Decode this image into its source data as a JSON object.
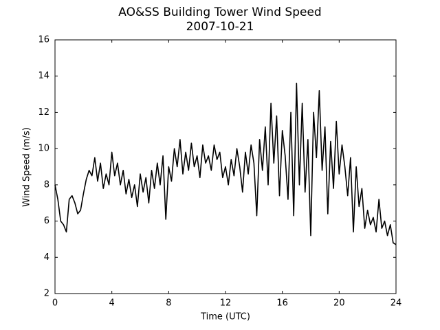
{
  "chart_data": {
    "type": "line",
    "title": "AO&SS Building Tower Wind Speed",
    "subtitle": "2007-10-21",
    "x_label": "Time (UTC)",
    "y_label": "Wind Speed (m/s)",
    "xlim": [
      0,
      24
    ],
    "xticks": [
      0,
      4,
      8,
      12,
      16,
      20,
      24
    ],
    "ylim": [
      2,
      16
    ],
    "yticks": [
      2,
      4,
      6,
      8,
      10,
      12,
      14,
      16
    ],
    "grid": false,
    "series": [
      {
        "color": "#000000",
        "x": [
          0,
          0.2,
          0.4,
          0.6,
          0.8,
          1,
          1.2,
          1.4,
          1.6,
          1.8,
          2,
          2.2,
          2.4,
          2.6,
          2.8,
          3,
          3.2,
          3.4,
          3.6,
          3.8,
          4,
          4.2,
          4.4,
          4.6,
          4.8,
          5,
          5.2,
          5.4,
          5.6,
          5.8,
          6,
          6.2,
          6.4,
          6.6,
          6.8,
          7,
          7.2,
          7.4,
          7.6,
          7.8,
          8,
          8.2,
          8.4,
          8.6,
          8.8,
          9,
          9.2,
          9.4,
          9.6,
          9.8,
          10,
          10.2,
          10.4,
          10.6,
          10.8,
          11,
          11.2,
          11.4,
          11.6,
          11.8,
          12,
          12.2,
          12.4,
          12.6,
          12.8,
          13,
          13.2,
          13.4,
          13.6,
          13.8,
          14,
          14.2,
          14.4,
          14.6,
          14.8,
          15,
          15.2,
          15.4,
          15.6,
          15.8,
          16,
          16.2,
          16.4,
          16.6,
          16.8,
          17,
          17.2,
          17.4,
          17.6,
          17.8,
          18,
          18.2,
          18.4,
          18.6,
          18.8,
          19,
          19.2,
          19.4,
          19.6,
          19.8,
          20,
          20.2,
          20.4,
          20.6,
          20.8,
          21,
          21.2,
          21.4,
          21.6,
          21.8,
          22,
          22.2,
          22.4,
          22.6,
          22.8,
          23,
          23.2,
          23.4,
          23.6,
          23.8,
          24
        ],
        "values": [
          8.0,
          7.2,
          6.0,
          5.8,
          5.4,
          7.2,
          7.4,
          7.0,
          6.4,
          6.6,
          7.5,
          8.3,
          8.8,
          8.5,
          9.5,
          8.2,
          9.2,
          7.8,
          8.6,
          8.0,
          9.8,
          8.5,
          9.2,
          8.0,
          8.8,
          7.5,
          8.3,
          7.3,
          8.0,
          6.8,
          8.6,
          7.6,
          8.4,
          7.0,
          8.8,
          7.8,
          9.2,
          8.0,
          9.6,
          6.1,
          9.0,
          8.2,
          10.0,
          9.0,
          10.5,
          8.6,
          9.8,
          8.8,
          10.3,
          9.0,
          9.6,
          8.4,
          10.2,
          9.2,
          9.6,
          8.8,
          10.2,
          9.4,
          9.8,
          8.4,
          9.0,
          8.0,
          9.4,
          8.5,
          10.0,
          9.0,
          7.6,
          9.8,
          8.6,
          10.2,
          9.2,
          6.3,
          10.5,
          8.8,
          11.2,
          8.0,
          12.5,
          9.2,
          11.8,
          7.4,
          11.0,
          9.6,
          7.2,
          12.0,
          6.3,
          13.6,
          8.0,
          12.5,
          7.6,
          10.5,
          5.2,
          12.0,
          9.5,
          13.2,
          8.8,
          11.2,
          6.4,
          10.4,
          7.8,
          11.5,
          8.6,
          10.2,
          9.0,
          7.4,
          9.5,
          5.4,
          9.0,
          6.8,
          7.8,
          5.6,
          6.6,
          5.8,
          6.2,
          5.4,
          7.2,
          5.6,
          6.0,
          5.2,
          5.8,
          4.8,
          4.7
        ]
      }
    ]
  }
}
